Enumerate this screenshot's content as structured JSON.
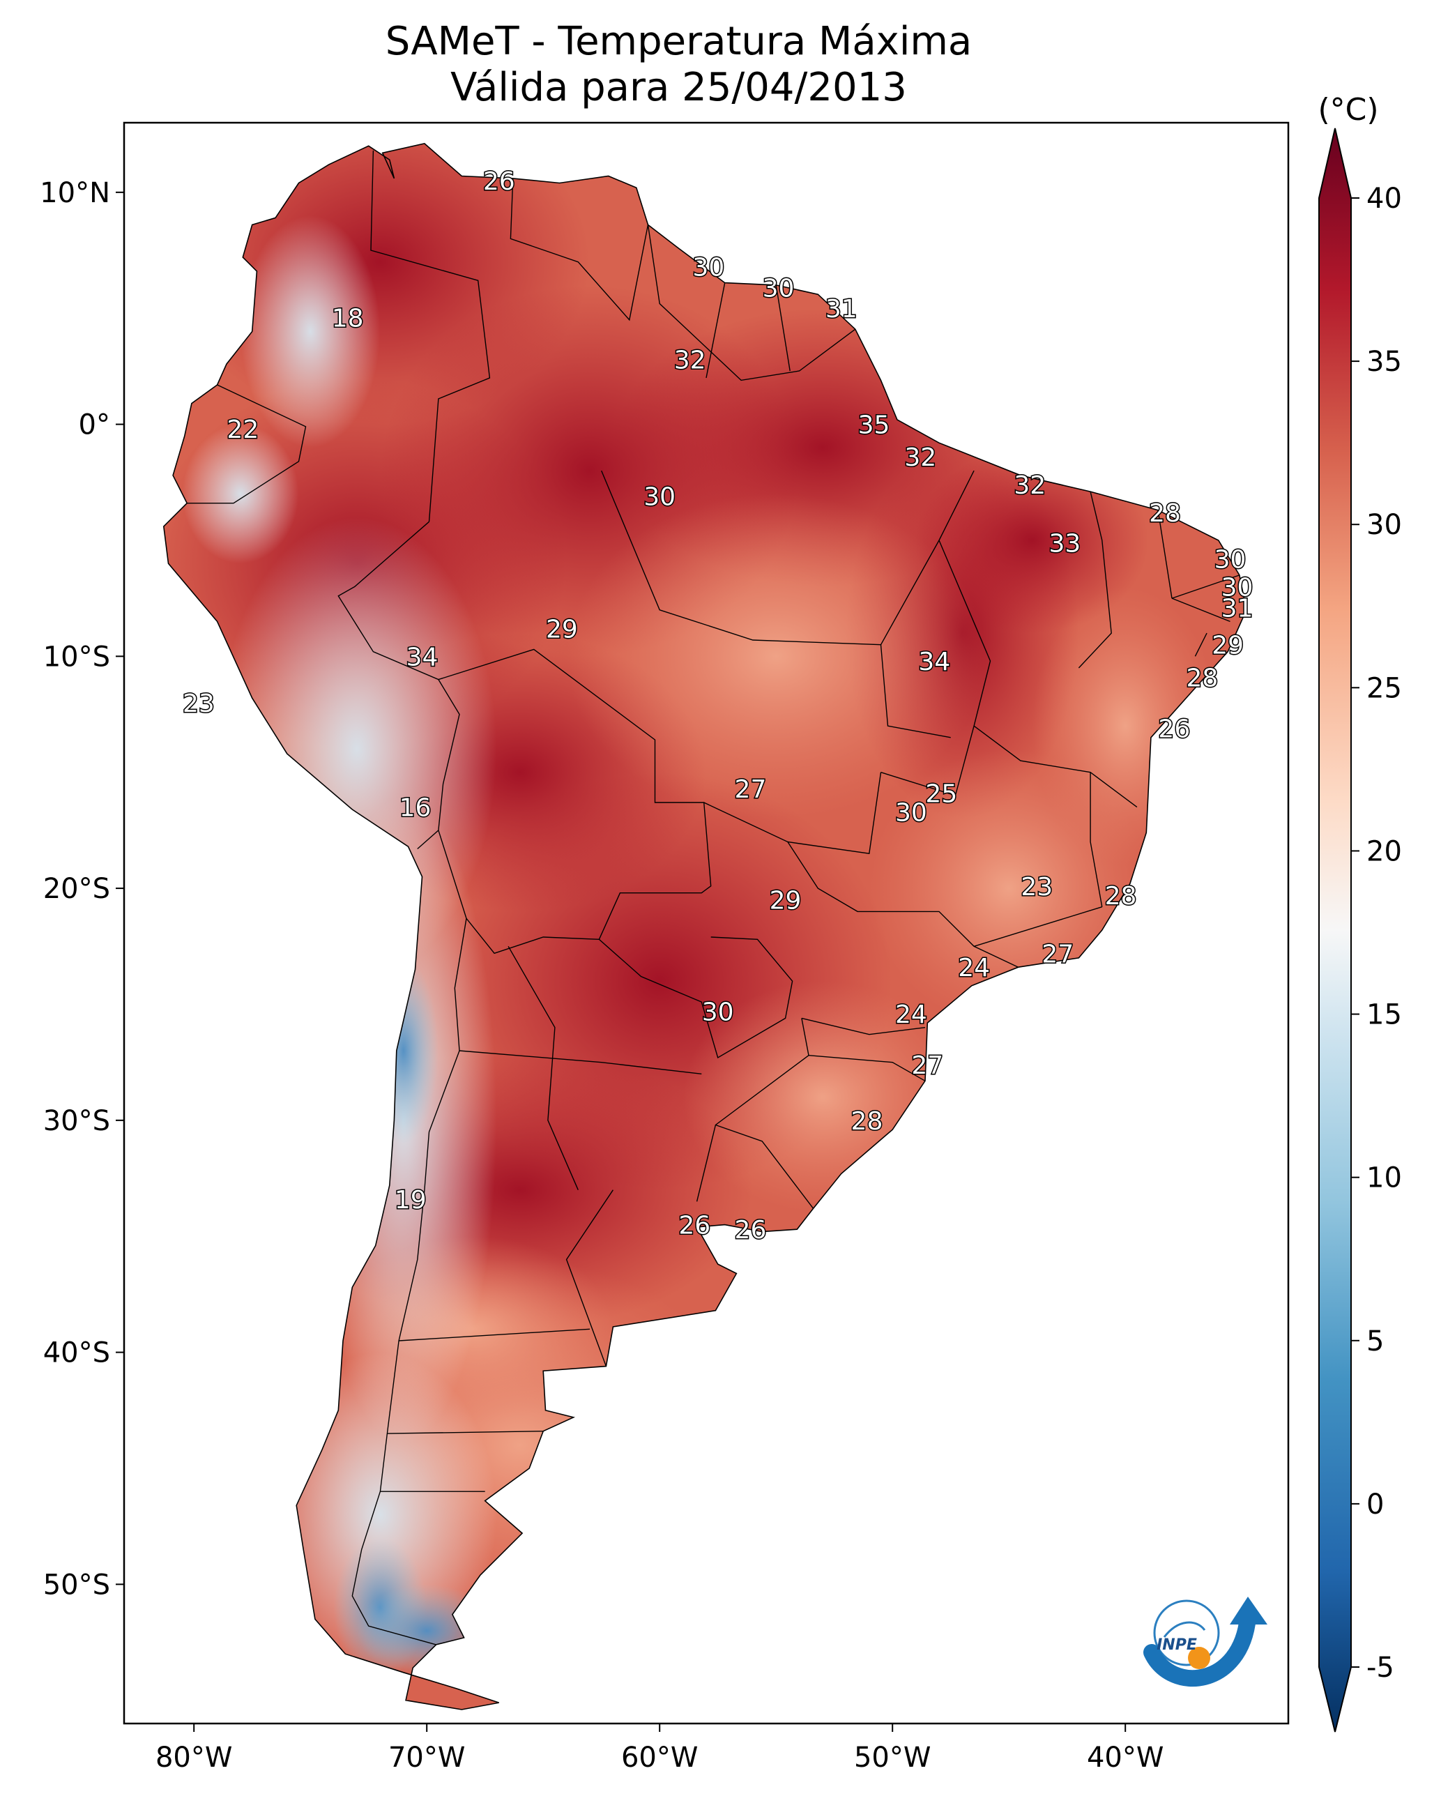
{
  "title_line1": "SAMeT - Temperatura Máxima",
  "title_line2": "Válida para 25/04/2013",
  "colorbar": {
    "unit": "(°C)",
    "min": -5,
    "max": 40,
    "ticks": [
      "40",
      "35",
      "30",
      "25",
      "20",
      "15",
      "10",
      "5",
      "0",
      "-5"
    ],
    "colormap": "RdBu_r",
    "extend": "both"
  },
  "lon_ticks": [
    "80°W",
    "70°W",
    "60°W",
    "50°W",
    "40°W"
  ],
  "lat_ticks": [
    "10°N",
    "0°",
    "10°S",
    "20°S",
    "30°S",
    "40°S",
    "50°S"
  ],
  "map_extent": {
    "lon": [
      -83,
      -33
    ],
    "lat": [
      -56,
      13
    ]
  },
  "logo_text": "INPE",
  "colors": {
    "hot": "#a51c2a",
    "warm": "#d6604d",
    "mild": "#f4a582",
    "neutral": "#f7f7f7",
    "cool": "#92c5de",
    "cold": "#2166ac"
  },
  "temperature_labels": [
    {
      "text": "26",
      "lon": -66.9,
      "lat": 10.5
    },
    {
      "text": "18",
      "lon": -73.4,
      "lat": 4.6
    },
    {
      "text": "30",
      "lon": -57.9,
      "lat": 6.8
    },
    {
      "text": "30",
      "lon": -54.9,
      "lat": 5.9
    },
    {
      "text": "31",
      "lon": -52.2,
      "lat": 5.0
    },
    {
      "text": "32",
      "lon": -58.7,
      "lat": 2.8
    },
    {
      "text": "22",
      "lon": -77.9,
      "lat": -0.2
    },
    {
      "text": "35",
      "lon": -50.8,
      "lat": 0.0
    },
    {
      "text": "32",
      "lon": -48.8,
      "lat": -1.4
    },
    {
      "text": "32",
      "lon": -44.1,
      "lat": -2.6
    },
    {
      "text": "30",
      "lon": -60.0,
      "lat": -3.1
    },
    {
      "text": "28",
      "lon": -38.3,
      "lat": -3.8
    },
    {
      "text": "33",
      "lon": -42.6,
      "lat": -5.1
    },
    {
      "text": "30",
      "lon": -35.5,
      "lat": -5.8
    },
    {
      "text": "30",
      "lon": -35.2,
      "lat": -7.0
    },
    {
      "text": "31",
      "lon": -35.2,
      "lat": -7.9
    },
    {
      "text": "29",
      "lon": -64.2,
      "lat": -8.8
    },
    {
      "text": "34",
      "lon": -70.2,
      "lat": -10.0
    },
    {
      "text": "34",
      "lon": -48.2,
      "lat": -10.2
    },
    {
      "text": "29",
      "lon": -35.6,
      "lat": -9.5
    },
    {
      "text": "28",
      "lon": -36.7,
      "lat": -10.9
    },
    {
      "text": "23",
      "lon": -79.8,
      "lat": -12.0
    },
    {
      "text": "26",
      "lon": -37.9,
      "lat": -13.1
    },
    {
      "text": "27",
      "lon": -56.1,
      "lat": -15.7
    },
    {
      "text": "25",
      "lon": -47.9,
      "lat": -15.9
    },
    {
      "text": "30",
      "lon": -49.2,
      "lat": -16.7
    },
    {
      "text": "16",
      "lon": -70.5,
      "lat": -16.5
    },
    {
      "text": "23",
      "lon": -43.8,
      "lat": -19.9
    },
    {
      "text": "28",
      "lon": -40.2,
      "lat": -20.3
    },
    {
      "text": "29",
      "lon": -54.6,
      "lat": -20.5
    },
    {
      "text": "27",
      "lon": -42.9,
      "lat": -22.8
    },
    {
      "text": "24",
      "lon": -46.5,
      "lat": -23.4
    },
    {
      "text": "30",
      "lon": -57.5,
      "lat": -25.3
    },
    {
      "text": "24",
      "lon": -49.2,
      "lat": -25.4
    },
    {
      "text": "27",
      "lon": -48.5,
      "lat": -27.6
    },
    {
      "text": "28",
      "lon": -51.1,
      "lat": -30.0
    },
    {
      "text": "19",
      "lon": -70.7,
      "lat": -33.4
    },
    {
      "text": "26",
      "lon": -58.5,
      "lat": -34.5
    },
    {
      "text": "26",
      "lon": -56.1,
      "lat": -34.7
    }
  ]
}
